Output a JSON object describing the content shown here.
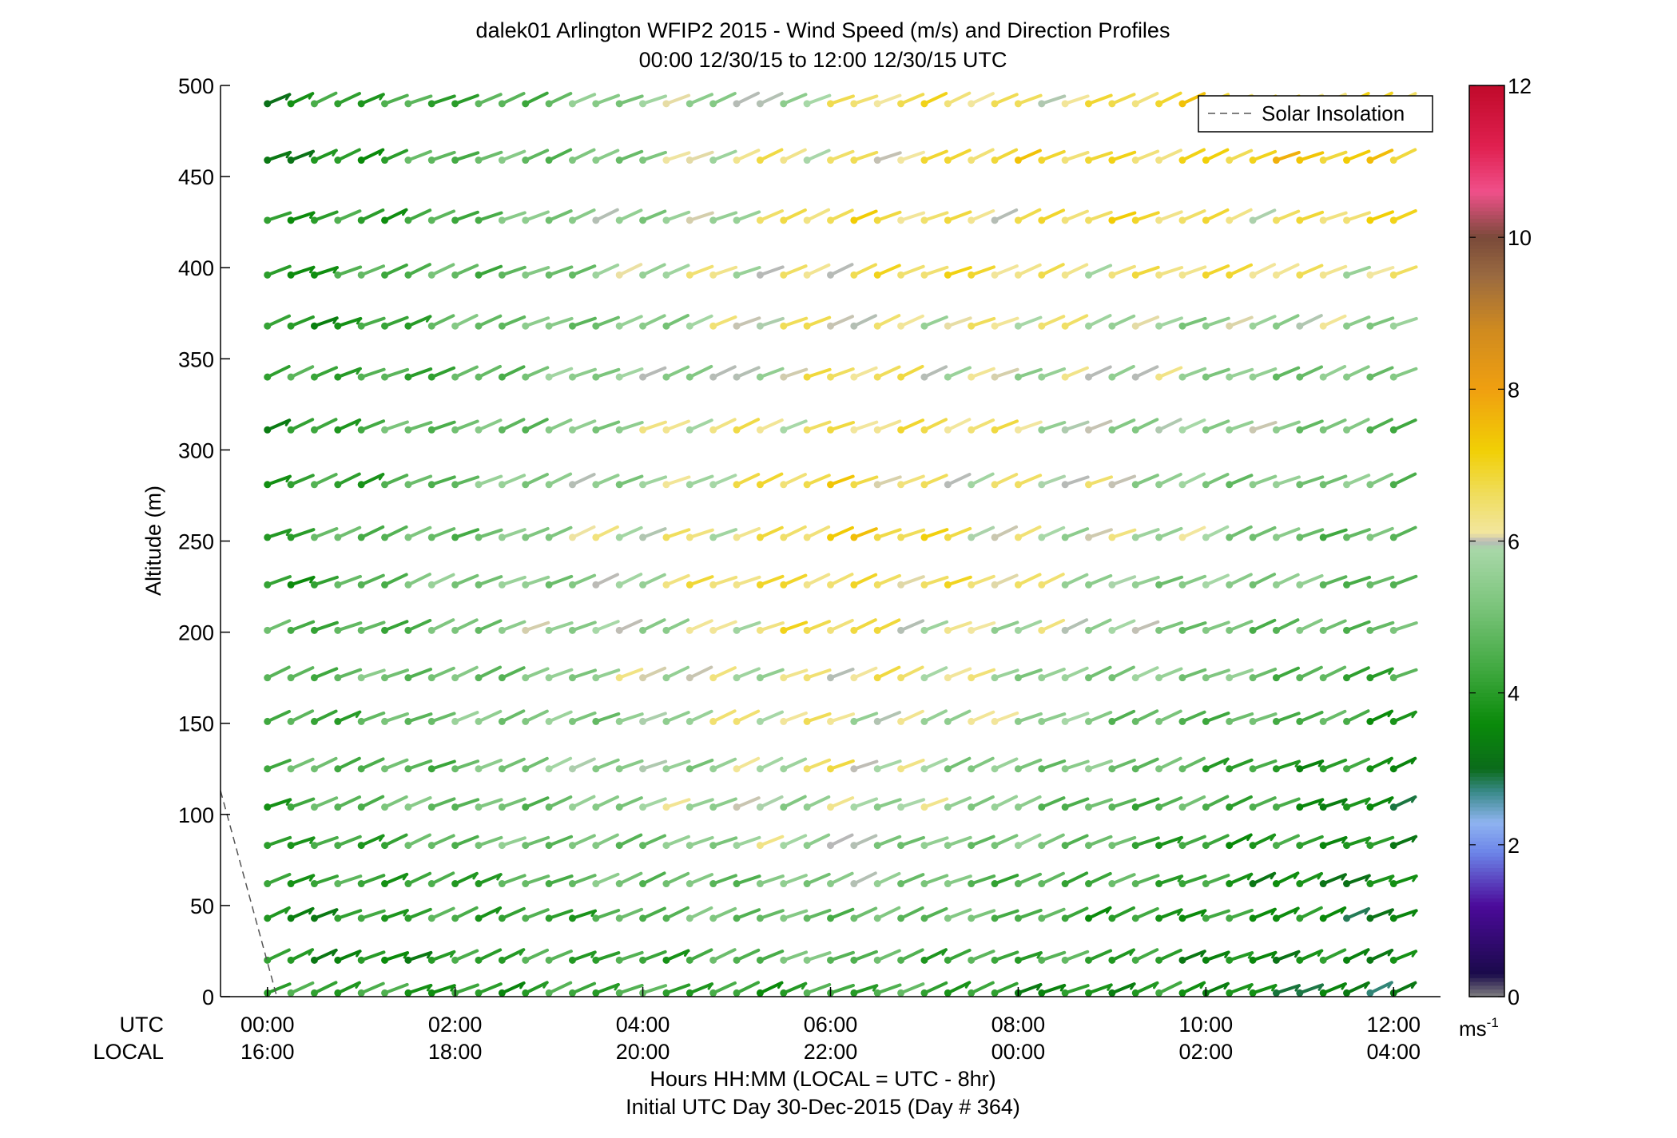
{
  "title": {
    "line1": "dalek01 Arlington WFIP2 2015 - Wind Speed (m/s) and Direction Profiles",
    "line2": "00:00 12/30/15 to 12:00 12/30/15  UTC"
  },
  "footer": {
    "line1": "Hours HH:MM  (LOCAL = UTC - 8hr)",
    "line2": "Initial UTC Day 30-Dec-2015 (Day # 364)"
  },
  "row_labels": {
    "utc": "UTC",
    "local": "LOCAL"
  },
  "colorbar": {
    "unit": "ms",
    "unit_exp": "-1",
    "ticks": [
      "0",
      "2",
      "4",
      "6",
      "8",
      "10",
      "12"
    ]
  },
  "legend": {
    "label": "Solar Insolation",
    "position": "top-right"
  },
  "chart_data": {
    "type": "wind-barb-profile",
    "ylabel": "Altitude (m)",
    "ylim": [
      0,
      500
    ],
    "yticks": [
      "0",
      "50",
      "100",
      "150",
      "200",
      "250",
      "300",
      "350",
      "400",
      "450",
      "500"
    ],
    "xlim_hours": [
      -0.5,
      12.5
    ],
    "xtick_hours": [
      0,
      2,
      4,
      6,
      8,
      10,
      12
    ],
    "xticks_utc": [
      "00:00",
      "02:00",
      "04:00",
      "06:00",
      "08:00",
      "10:00",
      "12:00"
    ],
    "xticks_local": [
      "16:00",
      "18:00",
      "20:00",
      "22:00",
      "00:00",
      "02:00",
      "04:00"
    ],
    "time_step_hours": 0.25,
    "time_start_hours": 0,
    "altitudes_m": [
      2,
      20,
      43,
      62,
      83,
      104,
      125,
      151,
      175,
      201,
      226,
      252,
      281,
      311,
      340,
      368,
      396,
      426,
      459,
      490
    ],
    "speed_range": [
      0,
      12
    ],
    "speed_profile": {
      "start": [
        4,
        3.6,
        3.7,
        3.9,
        4.2,
        4.4,
        4.4,
        4.4,
        4.4,
        4.3,
        4.2,
        4.1,
        4.0,
        3.9,
        3.9,
        3.8,
        3.8,
        3.7,
        3.6,
        3.6
      ],
      "middle": [
        4.3,
        4.8,
        5.1,
        5.4,
        5.8,
        6.0,
        6.2,
        6.3,
        6.4,
        6.6,
        6.9,
        7.0,
        6.8,
        6.7,
        6.4,
        6.4,
        6.6,
        6.6,
        6.5,
        6.3
      ],
      "end": [
        3.2,
        3.3,
        3.3,
        3.3,
        3.4,
        3.5,
        3.6,
        4.0,
        4.4,
        4.5,
        4.6,
        4.7,
        4.8,
        4.9,
        5.1,
        5.4,
        6.3,
        6.6,
        7.2,
        7.0
      ]
    },
    "direction_note": "barbs point roughly toward the upper right at all heights",
    "solar_insolation": {
      "points_hours_m": [
        [
          -0.5,
          113
        ],
        [
          0.1,
          0
        ]
      ],
      "color": "#555555",
      "style": "dashed"
    },
    "colormap": [
      [
        0,
        "#808080"
      ],
      [
        0.3,
        "#1a0a4a"
      ],
      [
        1.2,
        "#4b0a9a"
      ],
      [
        1.9,
        "#6c84e8"
      ],
      [
        2.3,
        "#8fb4f0"
      ],
      [
        2.7,
        "#3a8a8a"
      ],
      [
        3.0,
        "#0b6b1b"
      ],
      [
        3.6,
        "#0a8a0a"
      ],
      [
        4.3,
        "#3fa83f"
      ],
      [
        5.2,
        "#7fc67f"
      ],
      [
        5.9,
        "#a8d8a8"
      ],
      [
        6.0,
        "#b8b8b8"
      ],
      [
        6.1,
        "#f2e6a0"
      ],
      [
        6.6,
        "#f0de60"
      ],
      [
        7.2,
        "#f1cf05"
      ],
      [
        8.0,
        "#f0a010"
      ],
      [
        8.8,
        "#cf8a20"
      ],
      [
        9.5,
        "#9a6a40"
      ],
      [
        10.0,
        "#7a4a3a"
      ],
      [
        10.6,
        "#f0508a"
      ],
      [
        11.2,
        "#e02050"
      ],
      [
        12,
        "#c00a2a"
      ]
    ]
  }
}
